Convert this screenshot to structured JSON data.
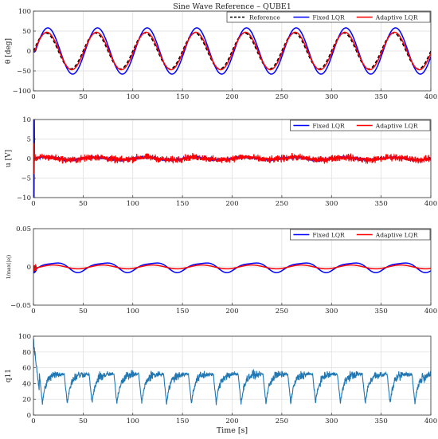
{
  "figure": {
    "xlabel": "Time [s]"
  },
  "chart_data": [
    {
      "type": "line",
      "title": "Sine Wave Reference – QUBE1",
      "xlabel": "",
      "ylabel": "θ [deg]",
      "xlim": [
        0,
        400
      ],
      "ylim": [
        -100,
        100
      ],
      "xticks": [
        0,
        50,
        100,
        150,
        200,
        250,
        300,
        350,
        400
      ],
      "yticks": [
        -100,
        -50,
        0,
        50,
        100
      ],
      "grid": true,
      "legend": "top-right",
      "series": [
        {
          "name": "Reference",
          "color": "#000000",
          "style": "dashed",
          "amplitude": 45,
          "period": 50
        },
        {
          "name": "Fixed LQR",
          "color": "#0000ff",
          "style": "solid",
          "amplitude": 58,
          "period": 50
        },
        {
          "name": "Adaptive LQR",
          "color": "#ff0000",
          "style": "solid",
          "amplitude": 47,
          "period": 50
        }
      ]
    },
    {
      "type": "line",
      "title": "",
      "xlabel": "",
      "ylabel": "u [V]",
      "xlim": [
        0,
        400
      ],
      "ylim": [
        -10,
        10
      ],
      "xticks": [
        0,
        50,
        100,
        150,
        200,
        250,
        300,
        350,
        400
      ],
      "yticks": [
        -10,
        -5,
        0,
        5,
        10
      ],
      "grid": true,
      "legend": "top-right",
      "series": [
        {
          "name": "Fixed LQR",
          "color": "#0000ff",
          "style": "solid",
          "initial_spike": 10,
          "noise": 0.5
        },
        {
          "name": "Adaptive LQR",
          "color": "#ff0000",
          "style": "solid",
          "initial_spike": 4,
          "noise": 0.6
        }
      ]
    },
    {
      "type": "line",
      "title": "",
      "xlabel": "",
      "ylabel": "1/max(|e|)",
      "xlim": [
        0,
        400
      ],
      "ylim": [
        -0.05,
        0.05
      ],
      "xticks": [
        0,
        50,
        100,
        150,
        200,
        250,
        300,
        350,
        400
      ],
      "yticks": [
        -0.05,
        0,
        0.05
      ],
      "ytick_labels": [
        "−0.05",
        "0",
        "0.05"
      ],
      "grid": true,
      "legend": "top-right",
      "series": [
        {
          "name": "Fixed LQR",
          "color": "#0000ff",
          "style": "solid",
          "amplitude": 0.006,
          "period": 50
        },
        {
          "name": "Adaptive LQR",
          "color": "#ff0000",
          "style": "solid",
          "amplitude": 0.0025,
          "period": 50
        }
      ]
    },
    {
      "type": "line",
      "title": "",
      "xlabel": "Time [s]",
      "ylabel": "q11",
      "xlim": [
        0,
        400
      ],
      "ylim": [
        0,
        100
      ],
      "xticks": [
        0,
        50,
        100,
        150,
        200,
        250,
        300,
        350,
        400
      ],
      "yticks": [
        0,
        20,
        40,
        60,
        80,
        100
      ],
      "grid": true,
      "legend": "none",
      "series": [
        {
          "name": "",
          "color": "#1f77b4",
          "style": "solid",
          "initial_value": 95,
          "dip_min": 15,
          "plateau": 52,
          "period": 25
        }
      ]
    }
  ]
}
